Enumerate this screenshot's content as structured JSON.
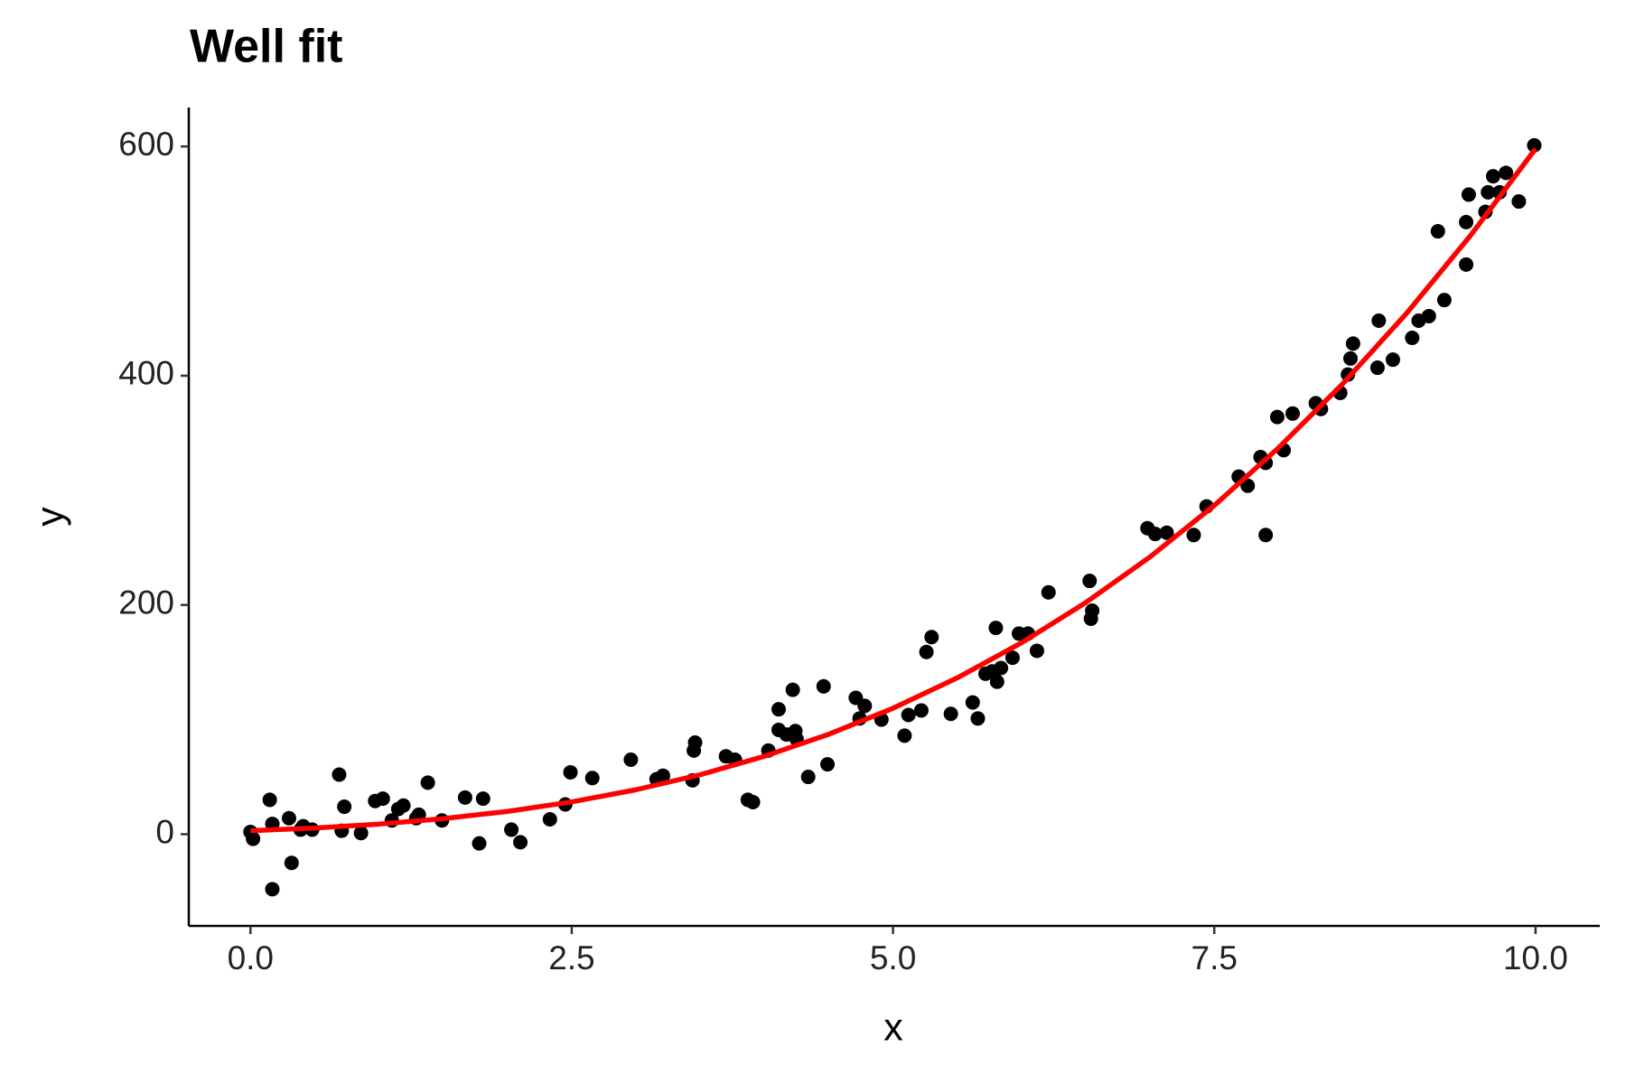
{
  "chart_data": {
    "type": "scatter",
    "title": "Well fit",
    "x_label": "x",
    "y_label": "y",
    "xlim": [
      -0.48,
      10.5
    ],
    "ylim": [
      -80,
      634
    ],
    "xticks": [
      {
        "value": 0,
        "label": "0.0"
      },
      2.5,
      {
        "value": 5,
        "label": "5.0"
      },
      7.5,
      {
        "value": 10,
        "label": "10.0"
      }
    ],
    "yticks": [
      0,
      200,
      400,
      600
    ],
    "grid": false,
    "series": [
      {
        "type": "scatter",
        "color": "#000000",
        "x": [
          0.0,
          0.02,
          0.15,
          0.17,
          0.17,
          0.3,
          0.32,
          0.39,
          0.41,
          0.48,
          0.69,
          0.71,
          0.73,
          0.86,
          0.97,
          1.03,
          1.1,
          1.15,
          1.19,
          1.29,
          1.31,
          1.38,
          1.49,
          1.67,
          1.78,
          1.81,
          2.03,
          2.1,
          2.33,
          2.45,
          2.49,
          2.66,
          2.96,
          3.16,
          3.21,
          3.44,
          3.45,
          3.46,
          3.7,
          3.77,
          3.87,
          3.91,
          4.03,
          4.11,
          4.11,
          4.17,
          4.22,
          4.24,
          4.25,
          4.34,
          4.46,
          4.49,
          4.71,
          4.74,
          4.78,
          4.91,
          5.09,
          5.12,
          5.22,
          5.26,
          5.3,
          5.45,
          5.62,
          5.66,
          5.72,
          5.77,
          5.8,
          5.81,
          5.84,
          5.93,
          5.98,
          6.05,
          6.12,
          6.21,
          6.53,
          6.54,
          6.55,
          6.98,
          7.04,
          7.13,
          7.34,
          7.44,
          7.69,
          7.76,
          7.86,
          7.9,
          7.9,
          7.99,
          8.04,
          8.11,
          8.29,
          8.33,
          8.48,
          8.54,
          8.56,
          8.58,
          8.77,
          8.78,
          8.89,
          9.04,
          9.09,
          9.17,
          9.24,
          9.29,
          9.46,
          9.46,
          9.48,
          9.61,
          9.63,
          9.67,
          9.72,
          9.77,
          9.87,
          9.99
        ],
        "values": [
          2,
          -4,
          30,
          9,
          -48,
          14,
          -25,
          4,
          7,
          4,
          52,
          3,
          24,
          1,
          29,
          31,
          12,
          22,
          25,
          14,
          17,
          45,
          12,
          32,
          -8,
          31,
          4,
          -7,
          13,
          26,
          54,
          49,
          65,
          48,
          51,
          47,
          73,
          80,
          68,
          65,
          30,
          28,
          73,
          109,
          91,
          87,
          126,
          90,
          83,
          50,
          129,
          61,
          119,
          101,
          112,
          100,
          86,
          104,
          108,
          159,
          172,
          105,
          115,
          101,
          140,
          142,
          180,
          133,
          145,
          154,
          175,
          175,
          160,
          211,
          221,
          188,
          195,
          267,
          262,
          263,
          261,
          286,
          312,
          304,
          329,
          324,
          261,
          364,
          335,
          367,
          376,
          371,
          385,
          401,
          415,
          428,
          407,
          448,
          414,
          433,
          448,
          452,
          526,
          466,
          497,
          534,
          558,
          543,
          560,
          574,
          560,
          577,
          552,
          601
        ]
      },
      {
        "type": "line",
        "color": "#ff0000",
        "x": [
          0,
          0.5,
          1,
          1.5,
          2,
          2.5,
          3,
          3.5,
          4,
          4.5,
          5,
          5.5,
          6,
          6.5,
          7,
          7.5,
          8,
          8.5,
          9,
          9.5,
          10
        ],
        "values": [
          3,
          5.4,
          8.8,
          13.6,
          19.9,
          28.2,
          38.8,
          51.9,
          68.0,
          87.2,
          109.9,
          136.4,
          167.0,
          202.1,
          241.9,
          286.8,
          337.1,
          393.0,
          454.9,
          523.2,
          598
        ]
      }
    ]
  }
}
